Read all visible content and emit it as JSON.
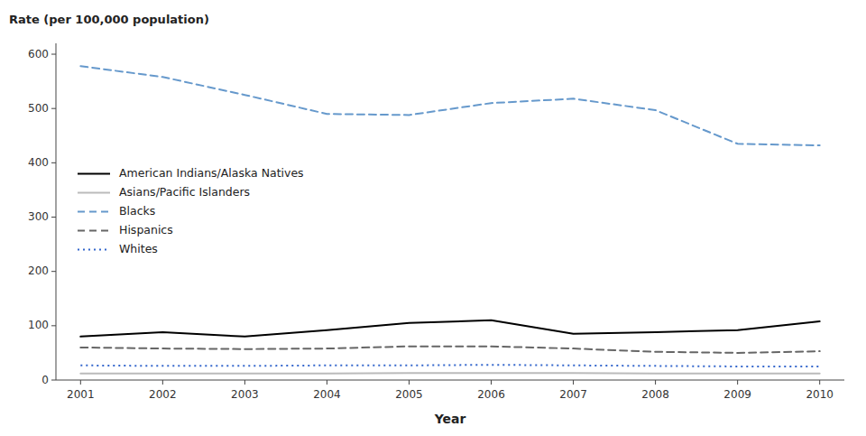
{
  "chart_data": {
    "type": "line",
    "xlabel": "Year",
    "ylabel": "Rate (per 100,000 population)",
    "x": [
      2001,
      2002,
      2003,
      2004,
      2005,
      2006,
      2007,
      2008,
      2009,
      2010
    ],
    "series": [
      {
        "name": "American Indians/Alaska Natives",
        "color": "#000000",
        "line_style": "solid",
        "values": [
          80,
          88,
          80,
          92,
          105,
          110,
          85,
          88,
          92,
          108
        ]
      },
      {
        "name": "Asians/Pacific Islanders",
        "color": "#bbbbbb",
        "line_style": "solid",
        "values": [
          12,
          12,
          12,
          12,
          13,
          13,
          13,
          12,
          12,
          12
        ]
      },
      {
        "name": "Blacks",
        "color": "#6699cc",
        "line_style": "dashed",
        "values": [
          578,
          558,
          525,
          490,
          488,
          510,
          518,
          497,
          435,
          432
        ]
      },
      {
        "name": "Hispanics",
        "color": "#666666",
        "line_style": "dashed",
        "values": [
          60,
          58,
          57,
          58,
          62,
          62,
          58,
          52,
          50,
          53
        ]
      },
      {
        "name": "Whites",
        "color": "#3366cc",
        "line_style": "dotted",
        "values": [
          27,
          26,
          26,
          27,
          27,
          28,
          27,
          26,
          25,
          25
        ]
      }
    ],
    "xlim": [
      2000.7,
      2010.3
    ],
    "xticks": [
      2001,
      2002,
      2003,
      2004,
      2005,
      2006,
      2007,
      2008,
      2009,
      2010
    ],
    "ylim": [
      0,
      620
    ],
    "yticks": [
      0,
      100,
      200,
      300,
      400,
      500,
      600
    ],
    "grid": false,
    "legend": "center left"
  }
}
